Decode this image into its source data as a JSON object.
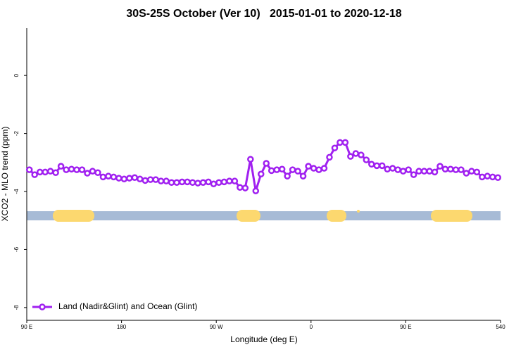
{
  "chart_data": {
    "type": "line",
    "title": "30S-25S October (Ver 10)   2015-01-01 to 2020-12-18",
    "xlabel": "Longitude (deg E)",
    "ylabel": "XCO2 - MLO trend (ppm)",
    "xlim": [
      90,
      540
    ],
    "ylim": [
      -8.44,
      1.63
    ],
    "xticks": [
      {
        "value": 90,
        "label": "90 E"
      },
      180,
      {
        "value": 270,
        "label": "90 W"
      },
      {
        "value": 360,
        "label": "0"
      },
      {
        "value": 450,
        "label": "90 E"
      },
      540
    ],
    "yticks": [
      0,
      -2,
      -4,
      -6,
      -8
    ],
    "legend": "bottom-left",
    "x": [
      92.5,
      97.5,
      102.5,
      107.5,
      112.5,
      117.5,
      122.5,
      127.5,
      132.5,
      137.5,
      142.5,
      147.5,
      152.5,
      157.5,
      162.5,
      167.5,
      172.5,
      177.5,
      182.5,
      187.5,
      192.5,
      197.5,
      202.5,
      207.5,
      212.5,
      217.5,
      222.5,
      227.5,
      232.5,
      237.5,
      242.5,
      247.5,
      252.5,
      257.5,
      262.5,
      267.5,
      272.5,
      277.5,
      282.5,
      287.5,
      292.5,
      297.5,
      302.5,
      307.5,
      312.5,
      317.5,
      322.5,
      327.5,
      332.5,
      337.5,
      342.5,
      347.5,
      352.5,
      357.5,
      362.5,
      367.5,
      372.5,
      377.5,
      382.5,
      387.5,
      392.5,
      397.5,
      402.5,
      407.5,
      412.5,
      417.5,
      422.5,
      427.5,
      432.5,
      437.5,
      442.5,
      447.5,
      452.5,
      457.5,
      462.5,
      467.5,
      472.5,
      477.5,
      482.5,
      487.5,
      492.5,
      497.5,
      502.5,
      507.5,
      512.5,
      517.5,
      522.5,
      527.5,
      532.5,
      537.5
    ],
    "series": [
      {
        "name": "Land (Nadir&Glint) and Ocean (Glint)",
        "color": "#a020f0",
        "values": [
          -3.25,
          -3.42,
          -3.33,
          -3.33,
          -3.3,
          -3.35,
          -3.13,
          -3.25,
          -3.23,
          -3.25,
          -3.25,
          -3.37,
          -3.3,
          -3.35,
          -3.5,
          -3.47,
          -3.5,
          -3.54,
          -3.57,
          -3.54,
          -3.52,
          -3.57,
          -3.62,
          -3.59,
          -3.59,
          -3.64,
          -3.64,
          -3.69,
          -3.69,
          -3.67,
          -3.67,
          -3.69,
          -3.71,
          -3.69,
          -3.67,
          -3.74,
          -3.69,
          -3.67,
          -3.64,
          -3.64,
          -3.86,
          -3.88,
          -2.89,
          -3.98,
          -3.4,
          -3.03,
          -3.28,
          -3.25,
          -3.23,
          -3.47,
          -3.25,
          -3.3,
          -3.47,
          -3.13,
          -3.2,
          -3.25,
          -3.2,
          -2.82,
          -2.5,
          -2.31,
          -2.31,
          -2.79,
          -2.69,
          -2.74,
          -2.91,
          -3.06,
          -3.11,
          -3.11,
          -3.23,
          -3.2,
          -3.25,
          -3.3,
          -3.25,
          -3.42,
          -3.3,
          -3.3,
          -3.3,
          -3.33,
          -3.13,
          -3.23,
          -3.23,
          -3.25,
          -3.25,
          -3.37,
          -3.3,
          -3.33,
          -3.5,
          -3.47,
          -3.5,
          -3.52
        ]
      }
    ]
  }
}
